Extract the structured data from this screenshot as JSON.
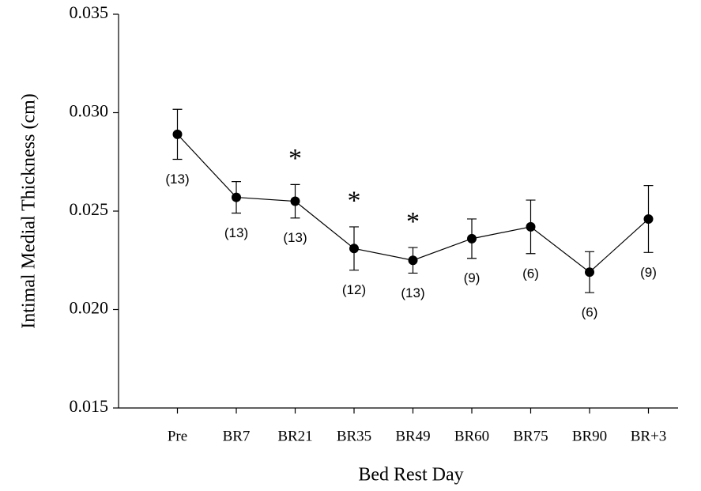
{
  "chart_data": {
    "type": "line",
    "x_label": "Bed Rest Day",
    "y_label": "Intimal Medial Thickness (cm)",
    "categories": [
      "Pre",
      "BR7",
      "BR21",
      "BR35",
      "BR49",
      "BR60",
      "BR75",
      "BR90",
      "BR+3"
    ],
    "values": [
      0.0289,
      0.0257,
      0.0255,
      0.0231,
      0.0225,
      0.0236,
      0.0242,
      0.0219,
      0.0246
    ],
    "errors": [
      0.00127,
      0.0008,
      0.00085,
      0.0011,
      0.00065,
      0.001,
      0.00136,
      0.00104,
      0.0017
    ],
    "n_labels": [
      "(13)",
      "(13)",
      "(13)",
      "(12)",
      "(13)",
      "(9)",
      "(6)",
      "(6)",
      "(9)"
    ],
    "significance": [
      null,
      null,
      "*",
      "*",
      "*",
      null,
      null,
      null,
      null
    ],
    "color": "#000000",
    "ylim": [
      0.015,
      0.035
    ],
    "yticks": [
      0.015,
      {
        "value": 0.02,
        "label": "0.020"
      },
      0.025,
      {
        "value": 0.03,
        "label": "0.030"
      },
      0.035
    ]
  }
}
